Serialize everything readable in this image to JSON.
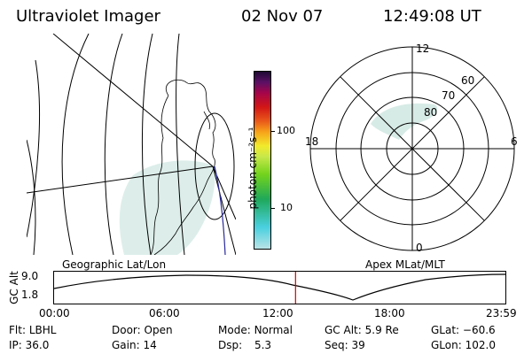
{
  "header": {
    "title": "Ultraviolet Imager",
    "date": "02 Nov 07",
    "time": "12:49:08 UT"
  },
  "colors": {
    "background": "#ffffff",
    "ink": "#000000",
    "marker": "#d00000",
    "dayside_track": "#2a2a9a",
    "aurora_haze": "#d7ebe6"
  },
  "left_map": {
    "caption": "Geographic Lat/Lon"
  },
  "colorbar": {
    "unit_label": "photon cm⁻²s⁻¹",
    "ticks": [
      "100",
      "10"
    ],
    "stops": [
      "#b9e3e6",
      "#4ad0e0",
      "#1fa85a",
      "#73d31c",
      "#c7e84a",
      "#f2ea2c",
      "#f7a21a",
      "#e9591a",
      "#d21616",
      "#a5054a",
      "#5b1065",
      "#1f0a33"
    ]
  },
  "polar_plot": {
    "caption": "Apex MLat/MLT",
    "lat_labels": [
      "80",
      "70",
      "60"
    ],
    "mlt_labels": [
      "12",
      "18",
      "6",
      "0"
    ]
  },
  "timeline": {
    "ylabel": "GC Alt",
    "y_ticks": [
      "9.0",
      "1.8"
    ],
    "x_ticks": [
      "00:00",
      "06:00",
      "12:00",
      "18:00",
      "23:59"
    ],
    "current_fraction": 0.535
  },
  "status": {
    "rows": [
      [
        {
          "k": "Flt:",
          "v": "LBHL"
        },
        {
          "k": "Door:",
          "v": "Open"
        },
        {
          "k": "Mode:",
          "v": "Normal"
        },
        {
          "k": "GC Alt:",
          "v": "5.9 Re"
        },
        {
          "k": "GLat:",
          "v": "−60.6"
        }
      ],
      [
        {
          "k": "IP:",
          "v": "36.0"
        },
        {
          "k": "Gain:",
          "v": "14"
        },
        {
          "k": "Dsp:",
          "v": "5.3"
        },
        {
          "k": "Seq:",
          "v": "39"
        },
        {
          "k": "GLon:",
          "v": "102.0"
        }
      ]
    ]
  }
}
